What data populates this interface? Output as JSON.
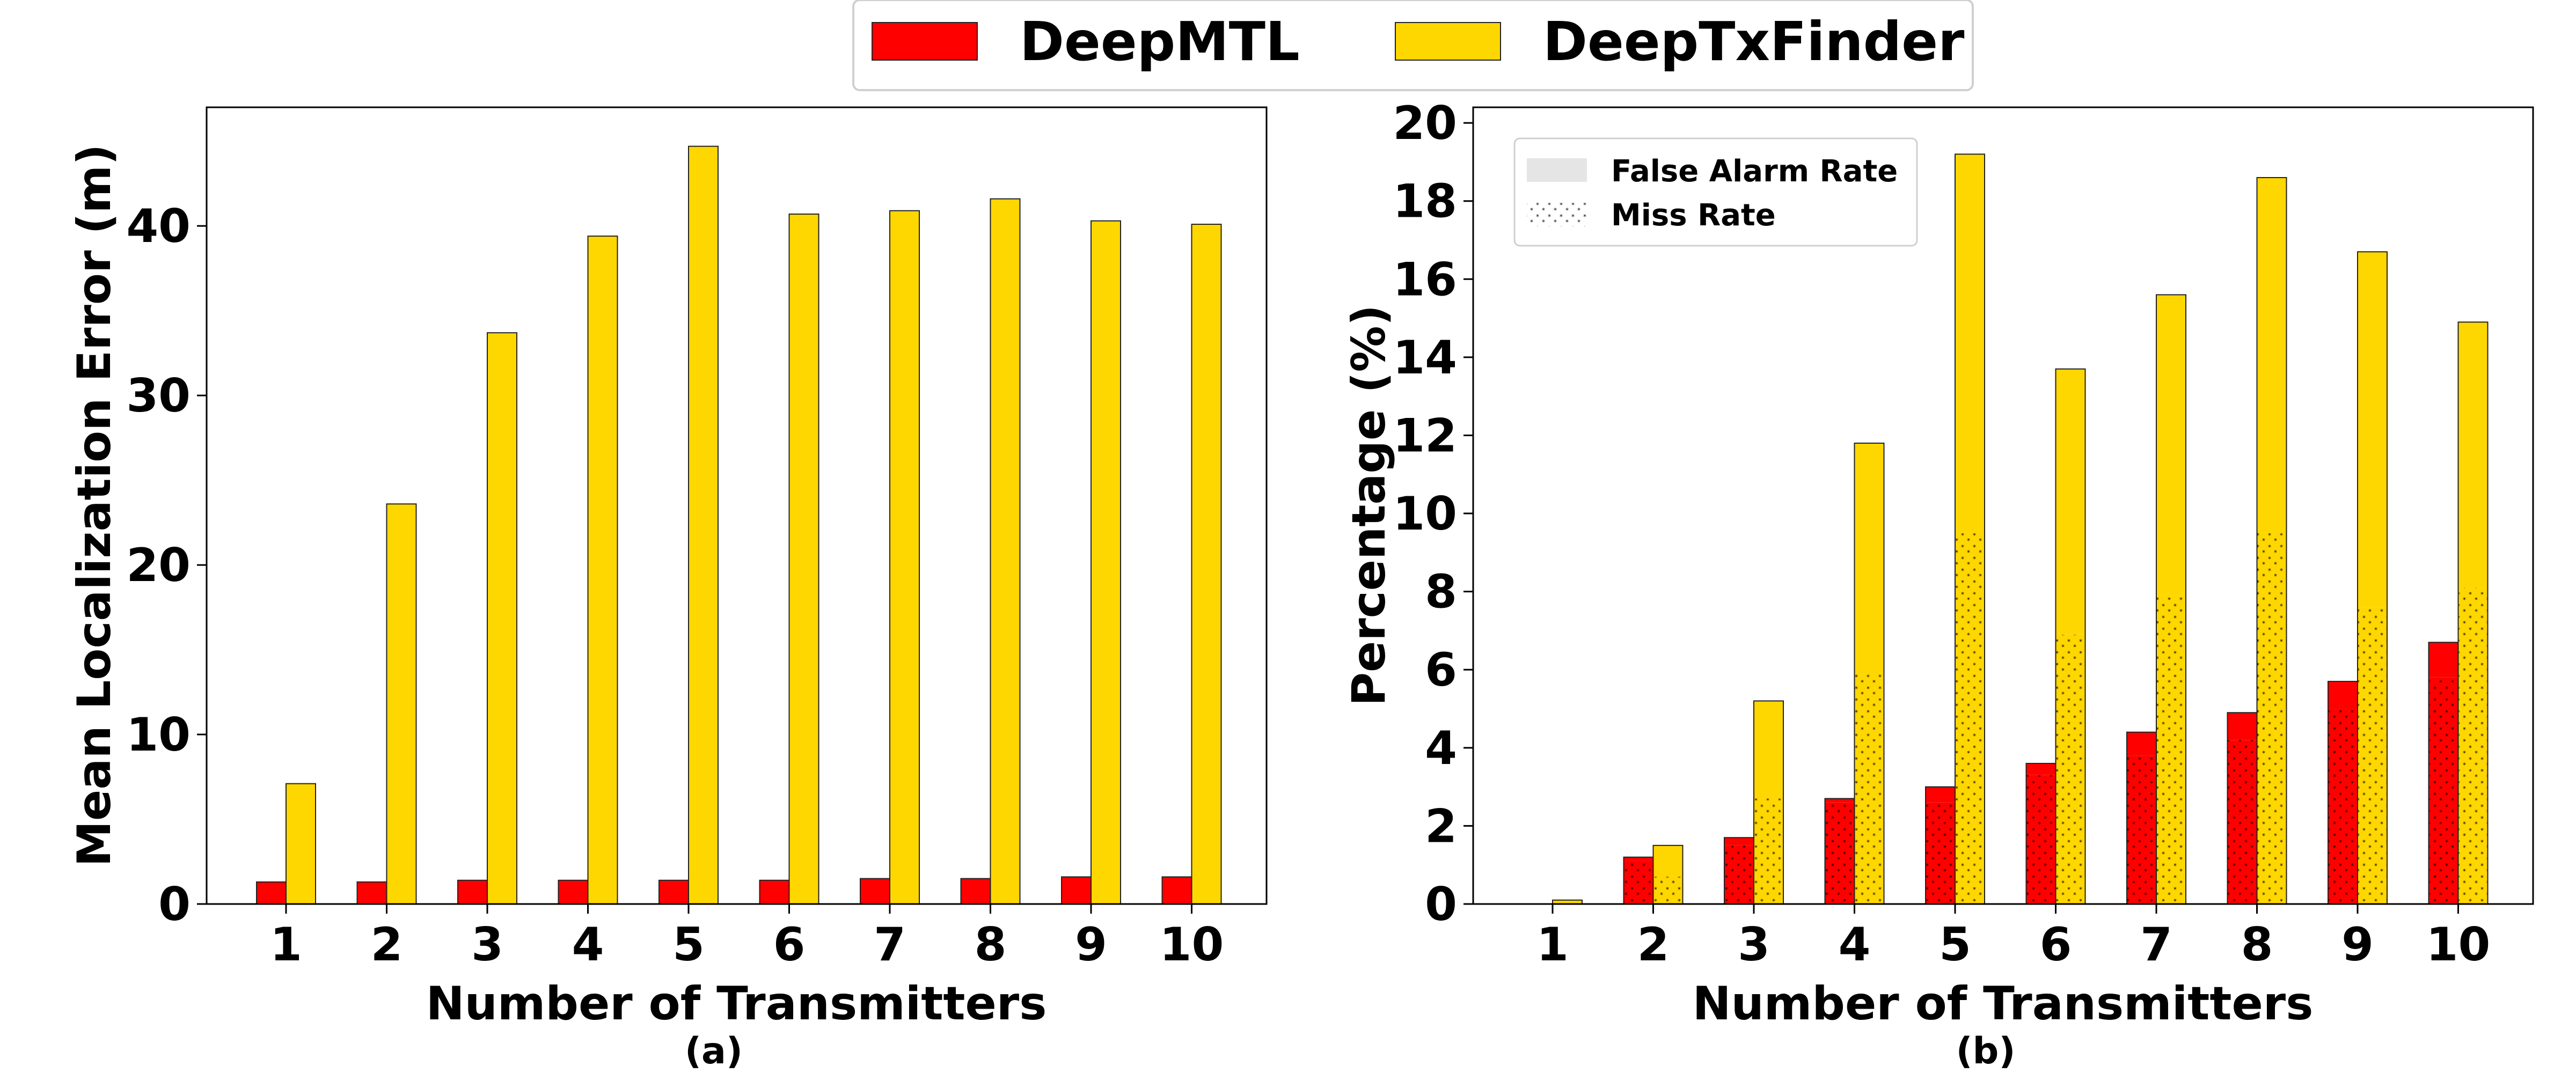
{
  "legend_top": [
    {
      "label": "DeepMTL",
      "color": "#ff0000"
    },
    {
      "label": "DeepTxFinder",
      "color": "#ffd700"
    }
  ],
  "legend_inner": [
    {
      "label": "False Alarm Rate",
      "pattern": "solid-light"
    },
    {
      "label": "Miss Rate",
      "pattern": "star-hatch"
    }
  ],
  "chart_data": [
    {
      "type": "bar",
      "caption": "(a)",
      "xlabel": "Number of Transmitters",
      "ylabel": "Mean Localization Error (m)",
      "categories": [
        "1",
        "2",
        "3",
        "4",
        "5",
        "6",
        "7",
        "8",
        "9",
        "10"
      ],
      "ylim": [
        0,
        47
      ],
      "yticks": [
        0,
        10,
        20,
        30,
        40
      ],
      "grid": false,
      "series": [
        {
          "name": "DeepMTL",
          "color": "#ff0000",
          "values": [
            1.3,
            1.3,
            1.4,
            1.4,
            1.4,
            1.4,
            1.5,
            1.5,
            1.6,
            1.6
          ]
        },
        {
          "name": "DeepTxFinder",
          "color": "#ffd700",
          "values": [
            7.1,
            23.6,
            33.7,
            39.4,
            44.7,
            40.7,
            40.9,
            41.6,
            40.3,
            40.1
          ]
        }
      ]
    },
    {
      "type": "bar",
      "stacked": true,
      "caption": "(b)",
      "xlabel": "Number of Transmitters",
      "ylabel": "Percentage (%)",
      "categories": [
        "1",
        "2",
        "3",
        "4",
        "5",
        "6",
        "7",
        "8",
        "9",
        "10"
      ],
      "ylim": [
        0,
        20.4
      ],
      "yticks": [
        0,
        2,
        4,
        6,
        8,
        10,
        12,
        14,
        16,
        18,
        20
      ],
      "grid": false,
      "legend_position": "top-left",
      "series": [
        {
          "name": "DeepMTL",
          "color": "#ff0000",
          "miss_rate": [
            0.0,
            1.1,
            1.5,
            2.6,
            2.6,
            3.3,
            3.8,
            4.2,
            5.0,
            5.8
          ],
          "false_alarm_rate": [
            0.0,
            0.1,
            0.2,
            0.1,
            0.4,
            0.3,
            0.6,
            0.7,
            0.7,
            0.9
          ]
        },
        {
          "name": "DeepTxFinder",
          "color": "#ffd700",
          "miss_rate": [
            0.0,
            0.7,
            2.7,
            5.9,
            9.5,
            6.9,
            7.9,
            9.5,
            7.6,
            8.1
          ],
          "false_alarm_rate": [
            0.1,
            0.8,
            2.5,
            5.9,
            9.7,
            6.8,
            7.7,
            9.1,
            9.1,
            6.8
          ]
        }
      ]
    }
  ]
}
